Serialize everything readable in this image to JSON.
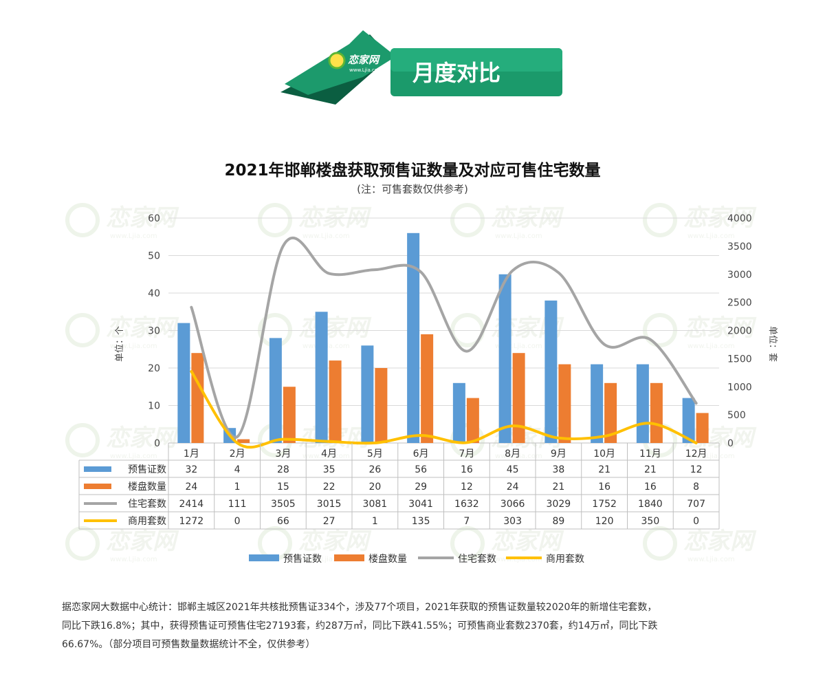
{
  "header": {
    "logo_text": "恋家网",
    "logo_sub": "www.Ljia.com",
    "section_title": "月度对比"
  },
  "watermark": {
    "text": "恋家网",
    "sub": "www.Ljia.com"
  },
  "colors": {
    "permits": "#5b9bd5",
    "projects": "#ed7d31",
    "residential": "#a5a5a5",
    "commercial": "#ffc000",
    "banner_dark": "#0f7a55",
    "banner_light": "#21a878"
  },
  "chart_data": {
    "type": "bar",
    "title": "2021年邯郸楼盘获取预售证数量及对应可售住宅数量",
    "subtitle": "(注：可售套数仅供参考)",
    "ylabel": "单位：个",
    "y2label": "单位：套",
    "ylim": [
      0,
      60
    ],
    "y_ticks": [
      0,
      10,
      20,
      30,
      40,
      50,
      60
    ],
    "y2lim": [
      0,
      4000
    ],
    "y2_ticks": [
      0,
      500,
      1000,
      1500,
      2000,
      2500,
      3000,
      3500,
      4000
    ],
    "grid": true,
    "legend_position": "bottom",
    "categories": [
      "1月",
      "2月",
      "3月",
      "4月",
      "5月",
      "6月",
      "7月",
      "8月",
      "9月",
      "10月",
      "11月",
      "12月"
    ],
    "series": [
      {
        "name": "预售证数",
        "kind": "bar",
        "axis": "left",
        "values": [
          32,
          4,
          28,
          35,
          26,
          56,
          16,
          45,
          38,
          21,
          21,
          12
        ]
      },
      {
        "name": "楼盘数量",
        "kind": "bar",
        "axis": "left",
        "values": [
          24,
          1,
          15,
          22,
          20,
          29,
          12,
          24,
          21,
          16,
          16,
          8
        ]
      },
      {
        "name": "住宅套数",
        "kind": "line",
        "axis": "right",
        "values": [
          2414,
          111,
          3505,
          3015,
          3081,
          3041,
          1632,
          3066,
          3029,
          1752,
          1840,
          707
        ]
      },
      {
        "name": "商用套数",
        "kind": "line",
        "axis": "right",
        "values": [
          1272,
          0,
          66,
          27,
          1,
          135,
          7,
          303,
          89,
          120,
          350,
          0
        ]
      }
    ]
  },
  "note": {
    "line1": "据恋家网大数据中心统计：邯郸主城区2021年共核批预售证334个，涉及77个项目，2021年获取的预售证数量较2020年的新增住宅套数，",
    "line2": "同比下跌16.8%；其中，获得预售证可预售住宅27193套，约287万㎡，同比下跌41.55%；可预售商业套数2370套，约14万㎡，同比下跌",
    "line3": "66.67%。（部分项目可预售数量数据统计不全，仅供参考）"
  }
}
